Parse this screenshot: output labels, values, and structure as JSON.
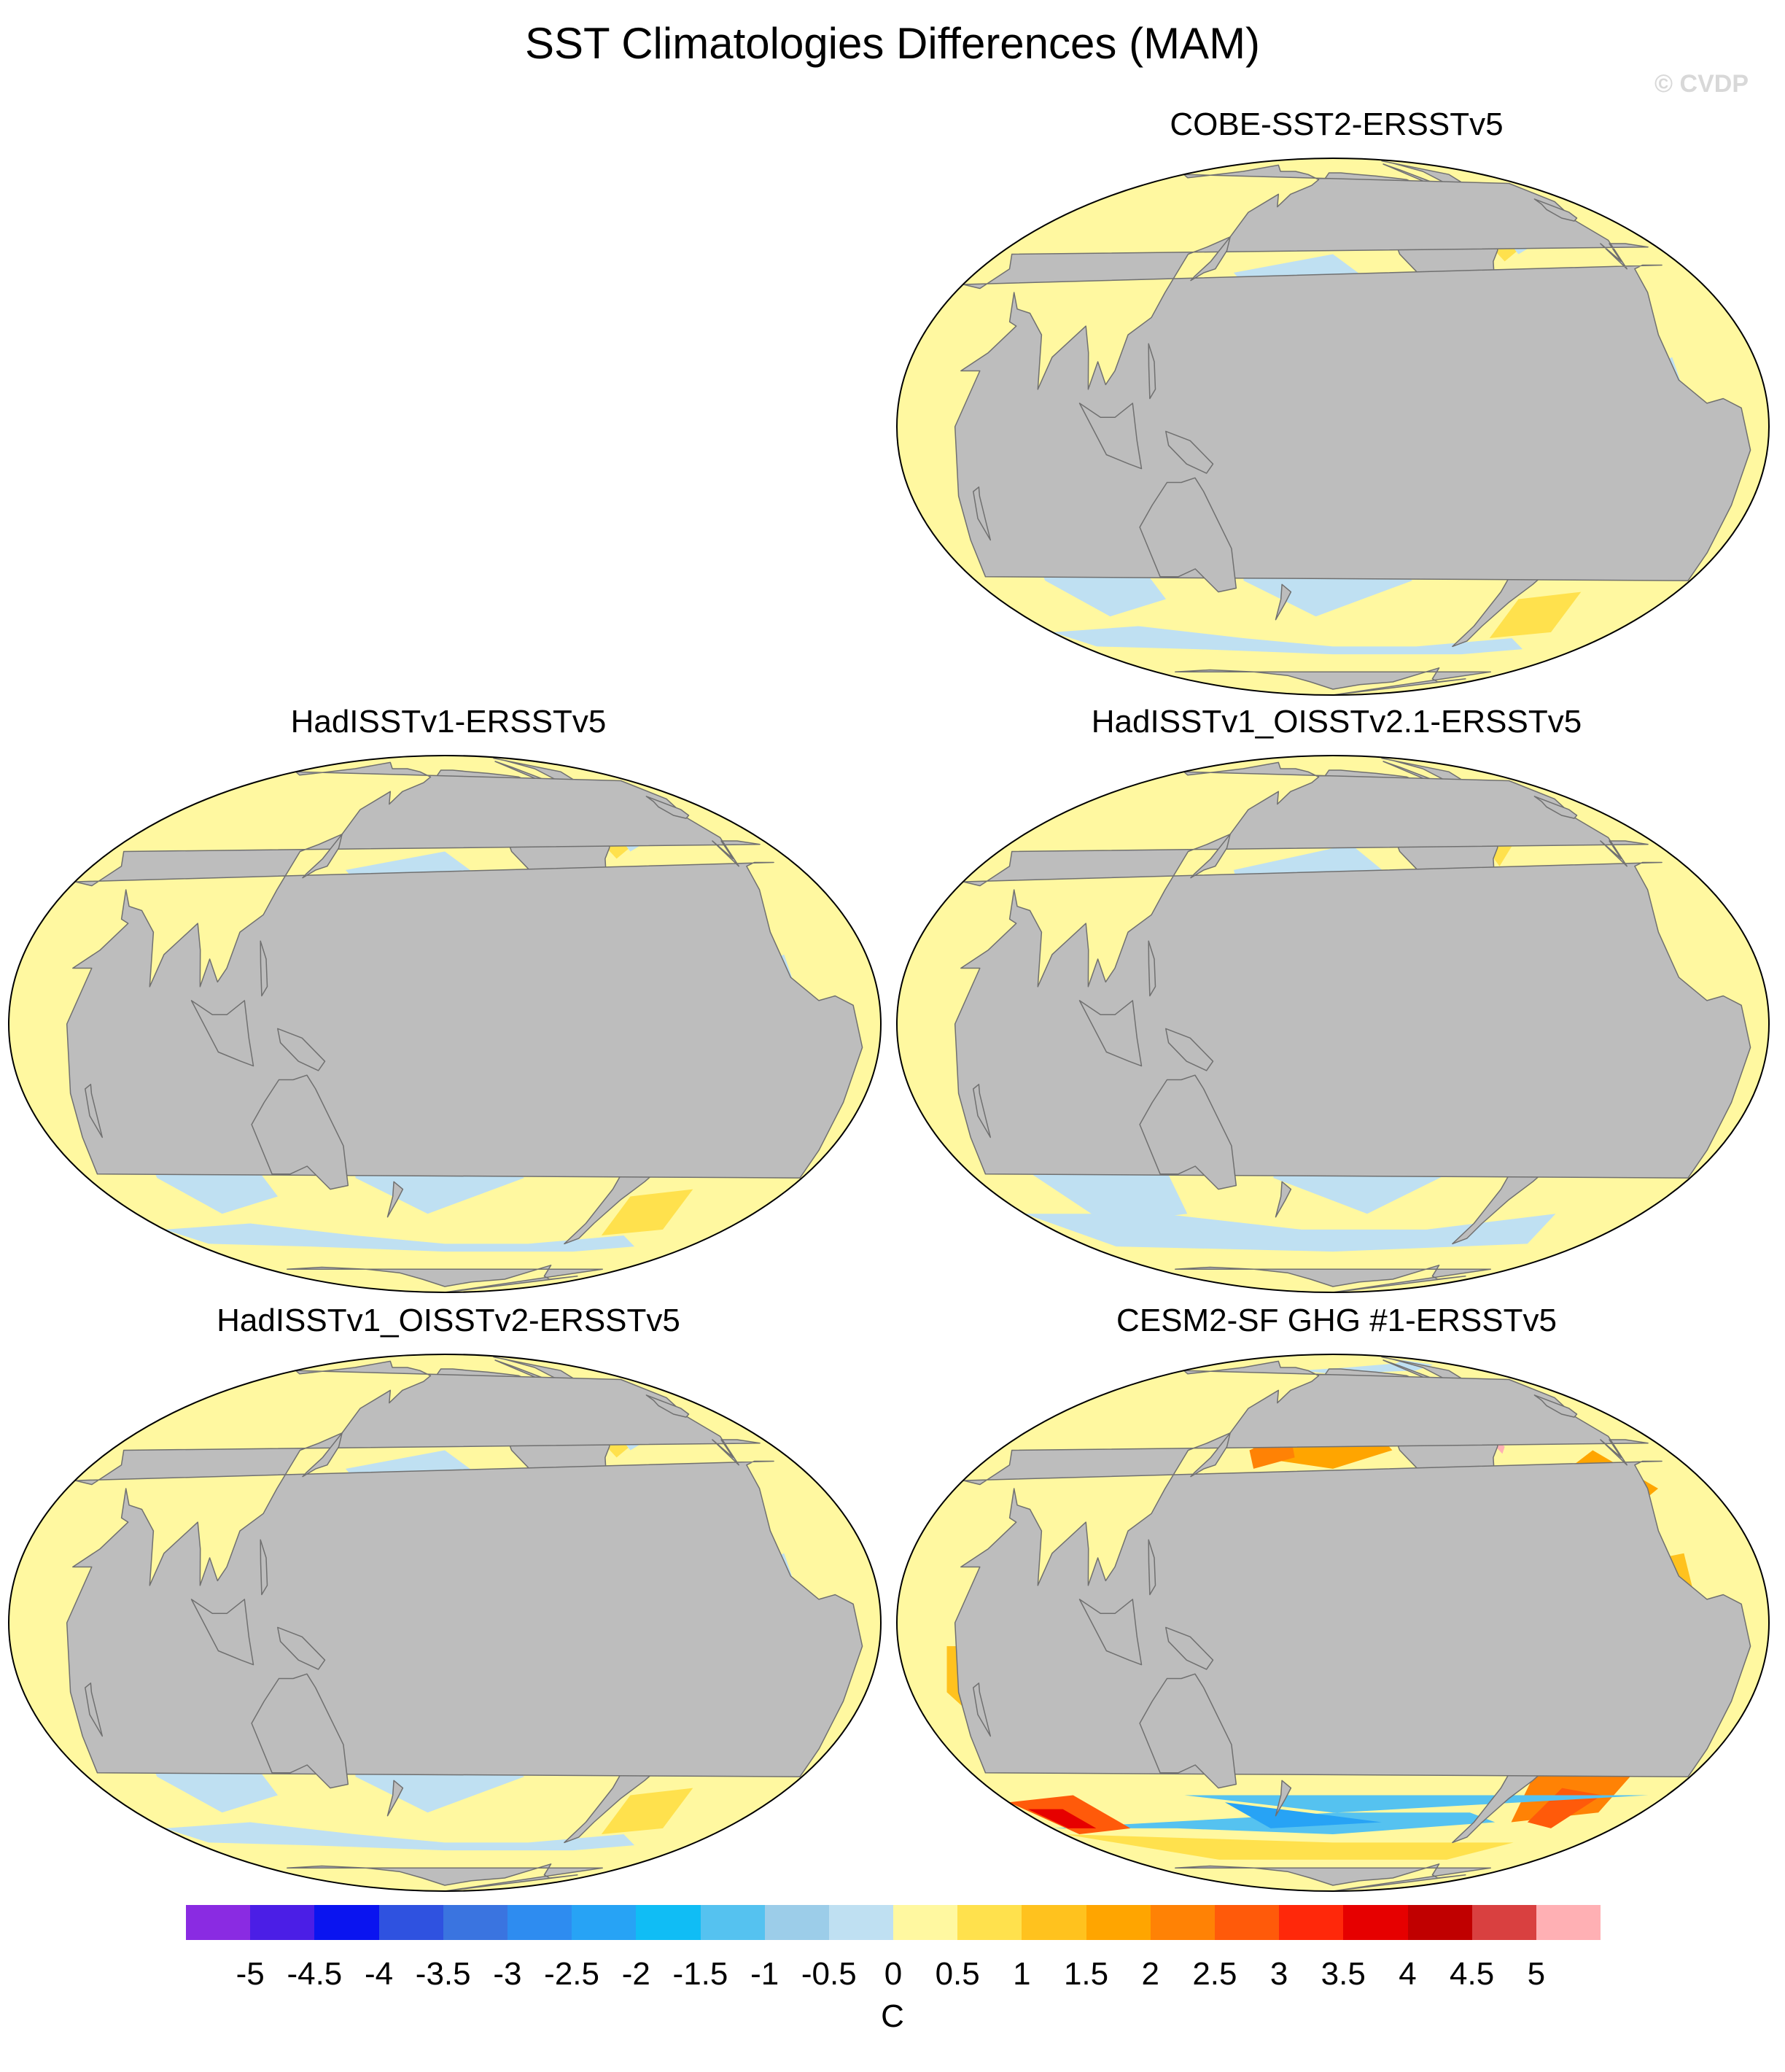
{
  "title": "SST Climatologies Differences (MAM)",
  "watermark": "© CVDP",
  "panels": [
    {
      "id": "p1",
      "title": "COBE-SST2-ERSSTv5",
      "style": "mild-yellow",
      "position": "top-right"
    },
    {
      "id": "p2",
      "title": "HadISSTv1-ERSSTv5",
      "style": "mild-yellow",
      "position": "middle-left"
    },
    {
      "id": "p3",
      "title": "HadISSTv1_OISSTv2.1-ERSSTv5",
      "style": "mild-blue",
      "position": "middle-right"
    },
    {
      "id": "p4",
      "title": "HadISSTv1_OISSTv2-ERSSTv5",
      "style": "mild-yellow",
      "position": "bottom-left"
    },
    {
      "id": "p5",
      "title": "CESM2-SF GHG #1-ERSSTv5",
      "style": "strong-warm",
      "position": "bottom-right"
    }
  ],
  "colorbar": {
    "units": "C",
    "labels": [
      "-5",
      "-4.5",
      "-4",
      "-3.5",
      "-3",
      "-2.5",
      "-2",
      "-1.5",
      "-1",
      "-0.5",
      "0",
      "0.5",
      "1",
      "1.5",
      "2",
      "2.5",
      "3",
      "3.5",
      "4",
      "4.5",
      "5"
    ],
    "colors": [
      "#8a2be2",
      "#4b1ee6",
      "#0a14f0",
      "#2f52e0",
      "#3a74e0",
      "#2e8cf0",
      "#27a3f5",
      "#10bdf5",
      "#55c2f0",
      "#9ccde9",
      "#bfe0f2",
      "#fff8a0",
      "#ffe14d",
      "#ffc21e",
      "#ffa500",
      "#ff8205",
      "#ff5a0a",
      "#ff280a",
      "#e60000",
      "#c00000",
      "#d94040",
      "#ffb0b4"
    ]
  },
  "map_colors": {
    "land": "#bdbdbd",
    "coast": "#707070",
    "ocean_warm": "#fff8a0",
    "ocean_cool": "#bfe0f2"
  }
}
